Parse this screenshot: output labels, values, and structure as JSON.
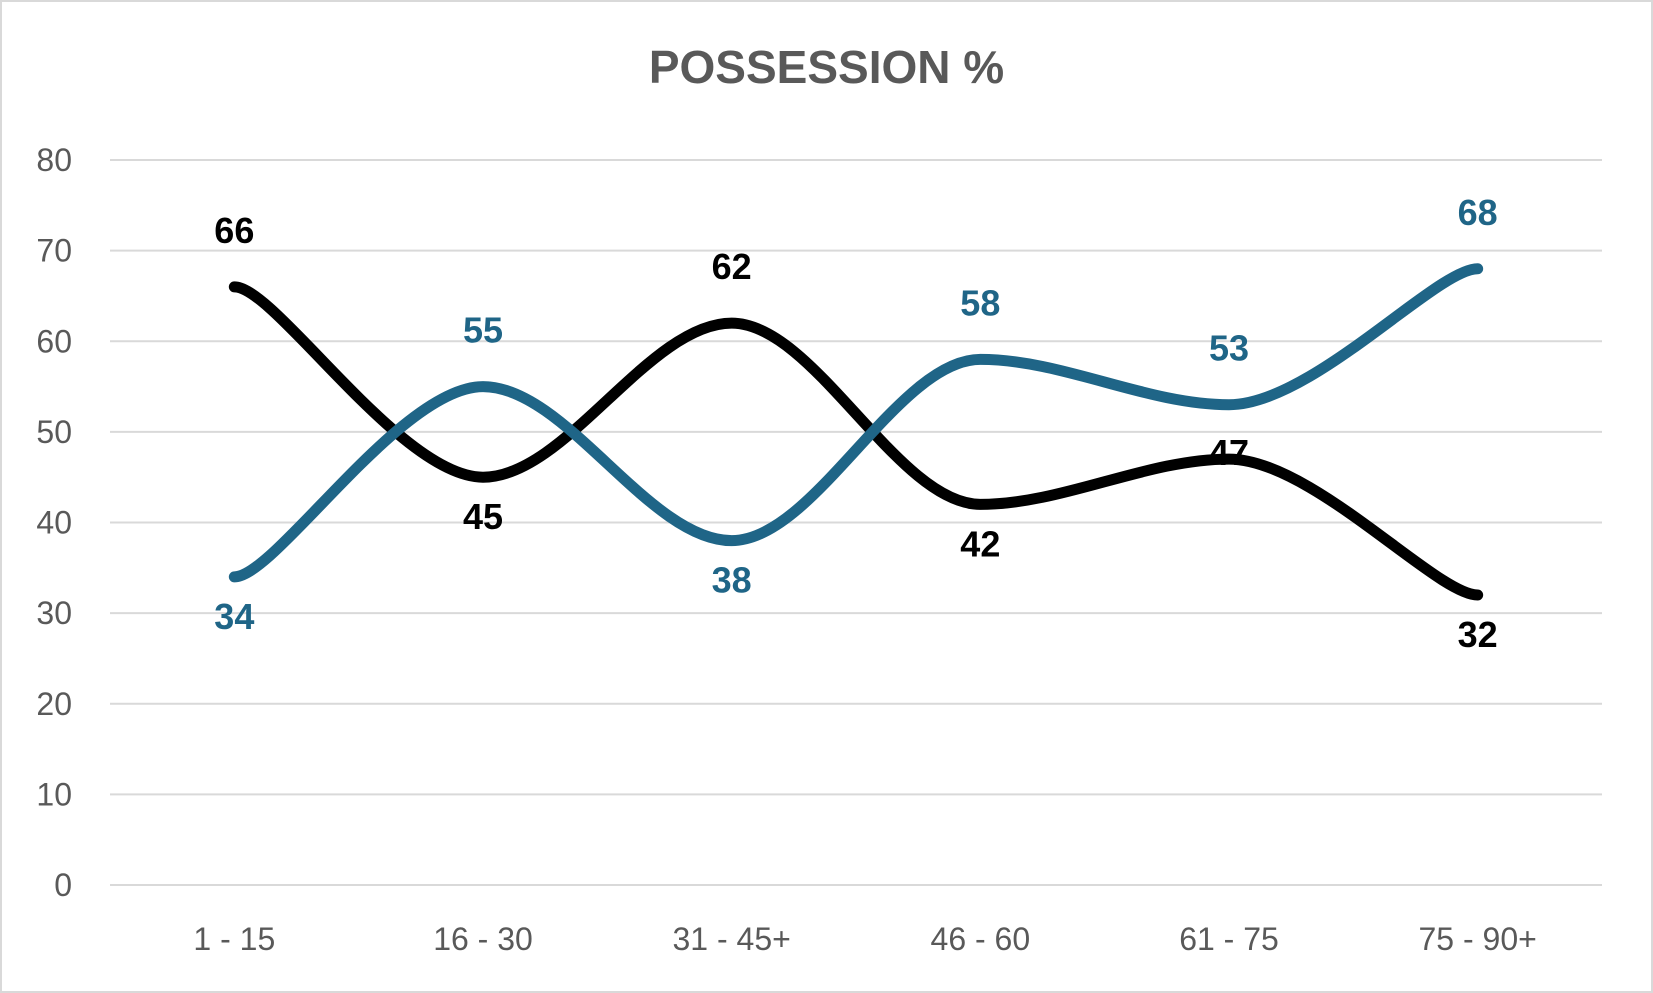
{
  "chart_data": {
    "type": "line",
    "title": "POSSESSION %",
    "categories": [
      "1 - 15",
      "16 - 30",
      "31 - 45+",
      "46 - 60",
      "61 - 75",
      "75 - 90+"
    ],
    "ylim": [
      0,
      80
    ],
    "yticks": [
      "0",
      "10",
      "20",
      "30",
      "40",
      "50",
      "60",
      "70",
      "80"
    ],
    "grid": true,
    "smooth": true,
    "series": [
      {
        "color": "#000000",
        "values": [
          66,
          45,
          62,
          42,
          47,
          32
        ]
      },
      {
        "color": "#1f6587",
        "values": [
          34,
          55,
          38,
          58,
          53,
          68
        ]
      }
    ]
  }
}
